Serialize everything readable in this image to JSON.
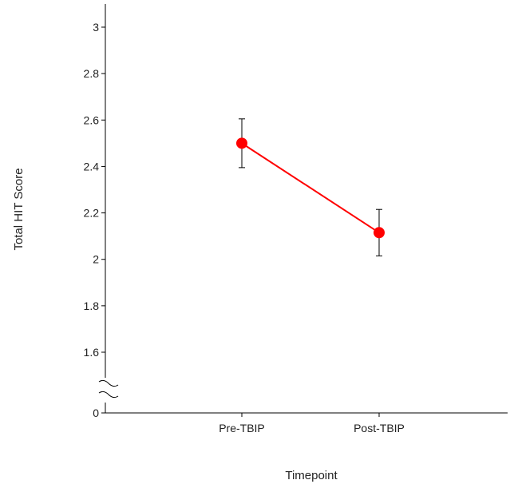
{
  "chart_data": {
    "type": "line",
    "categories": [
      "Pre-TBIP",
      "Post-TBIP"
    ],
    "series": [
      {
        "values": [
          2.5,
          2.115
        ],
        "error": [
          0.105,
          0.1
        ],
        "color": "#ff0000"
      }
    ],
    "xlabel": "Timepoint",
    "ylabel": "Total HIT Score",
    "ylim": [
      1.4,
      3.1
    ],
    "axis_break": true,
    "y_ticks": [
      {
        "value": 0,
        "label": "0"
      },
      {
        "value": 1.6,
        "label": "1.6"
      },
      {
        "value": 1.8,
        "label": "1.8"
      },
      {
        "value": 2,
        "label": "2"
      },
      {
        "value": 2.2,
        "label": "2.2"
      },
      {
        "value": 2.4,
        "label": "2.4"
      },
      {
        "value": 2.6,
        "label": "2.6"
      },
      {
        "value": 2.8,
        "label": "2.8"
      },
      {
        "value": 3,
        "label": "3"
      }
    ],
    "grid": false,
    "legend": "none"
  }
}
